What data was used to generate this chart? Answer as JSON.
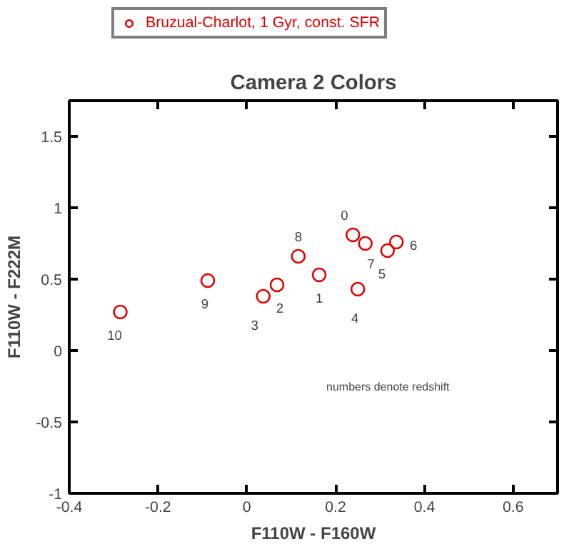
{
  "chart_data": {
    "type": "scatter",
    "title": "Camera 2 Colors",
    "xlabel": "F110W - F160W",
    "ylabel": "F110W - F222M",
    "x": [
      0.163,
      0.068,
      0.037,
      0.25,
      0.317,
      0.337,
      0.267,
      0.116,
      -0.088,
      -0.285,
      0.239
    ],
    "series": [
      {
        "name": "Bruzual-Charlot, 1 Gyr, const. SFR",
        "color": "#e00000",
        "values": [
          0.53,
          0.46,
          0.38,
          0.43,
          0.7,
          0.76,
          0.75,
          0.66,
          0.49,
          0.27,
          0.81
        ]
      }
    ],
    "xlim": [
      -0.4,
      0.7
    ],
    "ylim": [
      -1,
      1.75
    ],
    "xticks": [
      -0.4,
      -0.2,
      0,
      0.2,
      0.4,
      0.6
    ],
    "yticks": [
      -1,
      -0.5,
      0,
      0.5,
      1,
      1.5
    ],
    "annotations": [
      {
        "text": "1",
        "x": 0.163,
        "y": 0.53
      },
      {
        "text": "2",
        "x": 0.068,
        "y": 0.46
      },
      {
        "text": "3",
        "x": 0.037,
        "y": 0.38
      },
      {
        "text": "4",
        "x": 0.25,
        "y": 0.43
      },
      {
        "text": "5",
        "x": 0.317,
        "y": 0.7
      },
      {
        "text": "6",
        "x": 0.337,
        "y": 0.76
      },
      {
        "text": "7",
        "x": 0.267,
        "y": 0.75
      },
      {
        "text": "8",
        "x": 0.116,
        "y": 0.66
      },
      {
        "text": "9",
        "x": -0.088,
        "y": 0.49
      },
      {
        "text": "10",
        "x": -0.285,
        "y": 0.27
      },
      {
        "text": "0",
        "x": 0.239,
        "y": 0.81
      },
      "numbers denote redshift"
    ],
    "marker": "circle",
    "grid": false,
    "legend": "top left"
  }
}
